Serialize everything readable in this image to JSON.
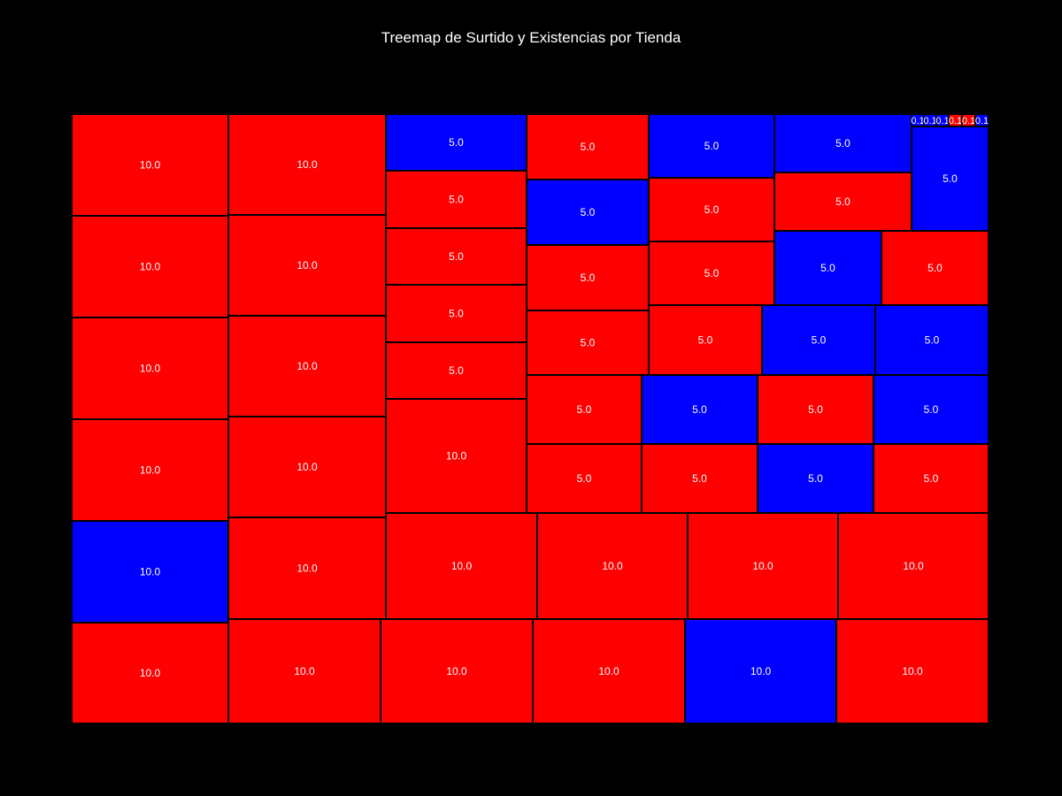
{
  "chart_data": {
    "type": "treemap",
    "title": "Treemap de Surtido y Existencias por Tienda",
    "colors": {
      "red": "#ff0000",
      "blue": "#0000ff",
      "background": "#000000",
      "border": "#000000",
      "label": "#ffffff"
    },
    "cells": [
      {
        "label": "10.0",
        "value": 10.0,
        "color": "red"
      },
      {
        "label": "10.0",
        "value": 10.0,
        "color": "red"
      },
      {
        "label": "10.0",
        "value": 10.0,
        "color": "red"
      },
      {
        "label": "10.0",
        "value": 10.0,
        "color": "red"
      },
      {
        "label": "10.0",
        "value": 10.0,
        "color": "blue"
      },
      {
        "label": "10.0",
        "value": 10.0,
        "color": "red"
      },
      {
        "label": "10.0",
        "value": 10.0,
        "color": "red"
      },
      {
        "label": "10.0",
        "value": 10.0,
        "color": "red"
      },
      {
        "label": "10.0",
        "value": 10.0,
        "color": "red"
      },
      {
        "label": "10.0",
        "value": 10.0,
        "color": "red"
      },
      {
        "label": "10.0",
        "value": 10.0,
        "color": "red"
      },
      {
        "label": "5.0",
        "value": 5.0,
        "color": "blue"
      },
      {
        "label": "5.0",
        "value": 5.0,
        "color": "red"
      },
      {
        "label": "5.0",
        "value": 5.0,
        "color": "red"
      },
      {
        "label": "5.0",
        "value": 5.0,
        "color": "red"
      },
      {
        "label": "5.0",
        "value": 5.0,
        "color": "red"
      },
      {
        "label": "10.0",
        "value": 10.0,
        "color": "red"
      },
      {
        "label": "5.0",
        "value": 5.0,
        "color": "red"
      },
      {
        "label": "5.0",
        "value": 5.0,
        "color": "blue"
      },
      {
        "label": "5.0",
        "value": 5.0,
        "color": "red"
      },
      {
        "label": "5.0",
        "value": 5.0,
        "color": "red"
      },
      {
        "label": "5.0",
        "value": 5.0,
        "color": "blue"
      },
      {
        "label": "5.0",
        "value": 5.0,
        "color": "red"
      },
      {
        "label": "5.0",
        "value": 5.0,
        "color": "red"
      },
      {
        "label": "5.0",
        "value": 5.0,
        "color": "red"
      },
      {
        "label": "5.0",
        "value": 5.0,
        "color": "blue"
      },
      {
        "label": "5.0",
        "value": 5.0,
        "color": "red"
      },
      {
        "label": "5.0",
        "value": 5.0,
        "color": "blue"
      },
      {
        "label": "5.0",
        "value": 5.0,
        "color": "red"
      },
      {
        "label": "5.0",
        "value": 5.0,
        "color": "blue"
      },
      {
        "label": "0.1",
        "value": 0.1,
        "color": "blue"
      },
      {
        "label": "0.1",
        "value": 0.1,
        "color": "blue"
      },
      {
        "label": "0.1",
        "value": 0.1,
        "color": "blue"
      },
      {
        "label": "0.1",
        "value": 0.1,
        "color": "red"
      },
      {
        "label": "0.1",
        "value": 0.1,
        "color": "red"
      },
      {
        "label": "0.1",
        "value": 0.1,
        "color": "blue"
      },
      {
        "label": "5.0",
        "value": 5.0,
        "color": "blue"
      },
      {
        "label": "5.0",
        "value": 5.0,
        "color": "blue"
      },
      {
        "label": "5.0",
        "value": 5.0,
        "color": "red"
      },
      {
        "label": "5.0",
        "value": 5.0,
        "color": "blue"
      },
      {
        "label": "5.0",
        "value": 5.0,
        "color": "red"
      },
      {
        "label": "5.0",
        "value": 5.0,
        "color": "blue"
      },
      {
        "label": "5.0",
        "value": 5.0,
        "color": "red"
      },
      {
        "label": "5.0",
        "value": 5.0,
        "color": "red"
      },
      {
        "label": "5.0",
        "value": 5.0,
        "color": "blue"
      },
      {
        "label": "5.0",
        "value": 5.0,
        "color": "red"
      },
      {
        "label": "10.0",
        "value": 10.0,
        "color": "red"
      },
      {
        "label": "10.0",
        "value": 10.0,
        "color": "red"
      },
      {
        "label": "10.0",
        "value": 10.0,
        "color": "red"
      },
      {
        "label": "10.0",
        "value": 10.0,
        "color": "red"
      },
      {
        "label": "10.0",
        "value": 10.0,
        "color": "red"
      },
      {
        "label": "10.0",
        "value": 10.0,
        "color": "red"
      },
      {
        "label": "10.0",
        "value": 10.0,
        "color": "red"
      },
      {
        "label": "10.0",
        "value": 10.0,
        "color": "blue"
      },
      {
        "label": "10.0",
        "value": 10.0,
        "color": "red"
      }
    ]
  }
}
